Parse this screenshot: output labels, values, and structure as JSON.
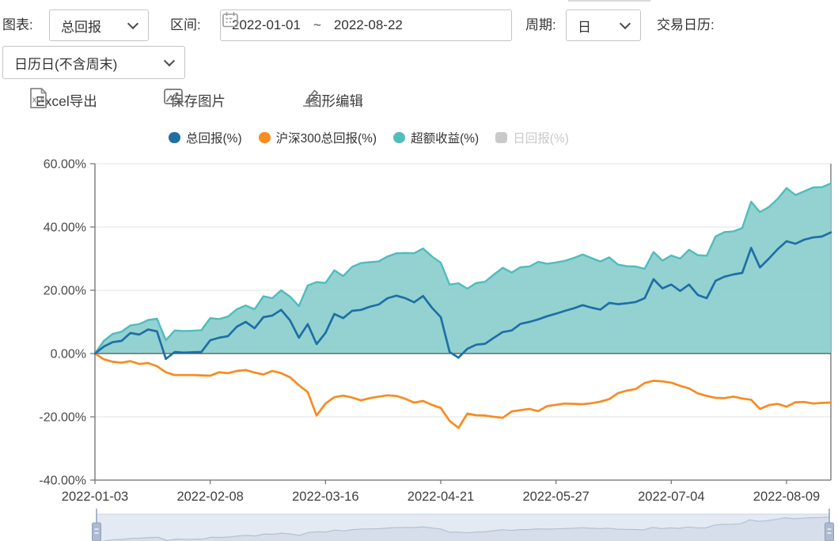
{
  "toolbar": {
    "chart_label": "图表:",
    "chart_select": "总回报",
    "range_label": "区间:",
    "range_start": "2022-01-01",
    "range_separator": "~",
    "range_end": "2022-08-22",
    "period_label": "周期:",
    "period_select": "日",
    "calendar_label": "交易日历:",
    "calendar_select": "日历日(不含周末)"
  },
  "actions": {
    "export_excel": "Excel导出",
    "save_image": "保存图片",
    "edit_graph": "图形编辑"
  },
  "legend": [
    {
      "label": "总回报(%)",
      "color": "#1e6fa5",
      "active": true,
      "shape": "circle"
    },
    {
      "label": "沪深300总回报(%)",
      "color": "#f78c1f",
      "active": true,
      "shape": "circle"
    },
    {
      "label": "超额收益(%)",
      "color": "#53bdbd",
      "active": true,
      "shape": "circle"
    },
    {
      "label": "日回报(%)",
      "color": "#c9c9c9",
      "active": false,
      "shape": "square"
    }
  ],
  "chart_data": {
    "type": "line",
    "title": "",
    "xlabel": "",
    "ylabel": "",
    "ylim": [
      -40,
      60
    ],
    "grid": true,
    "legend_position": "top",
    "x_dates": [
      "2022-01-03",
      "2022-01-05",
      "2022-01-07",
      "2022-01-11",
      "2022-01-13",
      "2022-01-17",
      "2022-01-19",
      "2022-01-21",
      "2022-01-25",
      "2022-01-27",
      "2022-01-31",
      "2022-02-02",
      "2022-02-04",
      "2022-02-08",
      "2022-02-10",
      "2022-02-14",
      "2022-02-16",
      "2022-02-18",
      "2022-02-22",
      "2022-02-24",
      "2022-02-28",
      "2022-03-02",
      "2022-03-04",
      "2022-03-08",
      "2022-03-10",
      "2022-03-15",
      "2022-03-16",
      "2022-03-18",
      "2022-03-22",
      "2022-03-24",
      "2022-03-28",
      "2022-03-30",
      "2022-04-01",
      "2022-04-05",
      "2022-04-07",
      "2022-04-11",
      "2022-04-13",
      "2022-04-15",
      "2022-04-19",
      "2022-04-21",
      "2022-04-25",
      "2022-04-27",
      "2022-04-29",
      "2022-05-03",
      "2022-05-05",
      "2022-05-09",
      "2022-05-11",
      "2022-05-13",
      "2022-05-17",
      "2022-05-19",
      "2022-05-23",
      "2022-05-25",
      "2022-05-27",
      "2022-05-31",
      "2022-06-02",
      "2022-06-06",
      "2022-06-08",
      "2022-06-10",
      "2022-06-14",
      "2022-06-16",
      "2022-06-20",
      "2022-06-22",
      "2022-06-24",
      "2022-06-28",
      "2022-06-30",
      "2022-07-04",
      "2022-07-06",
      "2022-07-08",
      "2022-07-12",
      "2022-07-14",
      "2022-07-18",
      "2022-07-20",
      "2022-07-22",
      "2022-07-26",
      "2022-07-28",
      "2022-08-01",
      "2022-08-03",
      "2022-08-05",
      "2022-08-09",
      "2022-08-11",
      "2022-08-15",
      "2022-08-17",
      "2022-08-19",
      "2022-08-22"
    ],
    "series": [
      {
        "name": "总回报(%)",
        "type": "line",
        "color": "#1e6fa5",
        "values": [
          0,
          2.2,
          3.6,
          4,
          6.5,
          6,
          7.6,
          7,
          -1.7,
          0.5,
          0.3,
          0.4,
          0.5,
          4.2,
          5,
          5.5,
          8.5,
          10,
          8,
          11.5,
          12,
          13.8,
          10.5,
          5,
          9.3,
          3,
          6.5,
          12.5,
          11.2,
          13.5,
          13.8,
          14.8,
          15.5,
          17.5,
          18.3,
          17.5,
          16.2,
          18.2,
          14.5,
          11.5,
          0.5,
          -1.3,
          1.5,
          2.8,
          3.1,
          5,
          6.8,
          7.3,
          9.4,
          10,
          10.8,
          11.8,
          12.6,
          13.5,
          14.3,
          15.3,
          14.5,
          13.9,
          16,
          15.6,
          15.9,
          16.3,
          17.5,
          23.5,
          20.6,
          21.8,
          19.8,
          21.8,
          18.5,
          17.5,
          23,
          24.3,
          25,
          25.5,
          33.4,
          27.2,
          30,
          33,
          35.5,
          34.7,
          36,
          36.7,
          37,
          38.3
        ]
      },
      {
        "name": "沪深300总回报(%)",
        "type": "line",
        "color": "#f78c1f",
        "values": [
          0,
          -1.8,
          -2.6,
          -2.9,
          -2.4,
          -3.3,
          -3,
          -4,
          -5.9,
          -6.8,
          -6.8,
          -6.8,
          -6.9,
          -7,
          -5.9,
          -6.2,
          -5.5,
          -5.2,
          -6,
          -6.6,
          -5.5,
          -6.2,
          -7.5,
          -10,
          -12.2,
          -19.6,
          -15.8,
          -13.8,
          -13.3,
          -13.9,
          -14.8,
          -14.1,
          -13.6,
          -13.2,
          -13.4,
          -14.3,
          -15.5,
          -15,
          -16.2,
          -17.2,
          -21.3,
          -23.5,
          -19,
          -19.5,
          -19.6,
          -20,
          -20.3,
          -18.3,
          -17.9,
          -17.5,
          -18.2,
          -16.6,
          -16.2,
          -15.8,
          -15.9,
          -16,
          -15.7,
          -15.2,
          -14.4,
          -12.5,
          -11.7,
          -11.2,
          -9.3,
          -8.6,
          -8.8,
          -9.2,
          -10.2,
          -11,
          -12.6,
          -13.4,
          -14,
          -14.1,
          -13.6,
          -14.2,
          -14.6,
          -17.5,
          -16.3,
          -15.9,
          -16.8,
          -15.4,
          -15.3,
          -15.8,
          -15.6,
          -15.5
        ]
      },
      {
        "name": "超额收益(%)",
        "type": "area",
        "color": "#4ebdbd",
        "fill": "#8ccfce",
        "values": [
          0,
          4,
          6.2,
          6.9,
          8.9,
          9.3,
          10.6,
          11,
          4.2,
          7.3,
          7.1,
          7.2,
          7.4,
          11.2,
          10.9,
          11.7,
          14,
          15.2,
          14,
          18.1,
          17.5,
          20,
          18,
          15,
          21.5,
          22.6,
          22.3,
          26.3,
          24.5,
          27.4,
          28.6,
          28.9,
          29.1,
          30.7,
          31.7,
          31.8,
          31.7,
          33.2,
          30.7,
          28.7,
          21.8,
          22.2,
          20.5,
          22.3,
          22.7,
          25,
          27.1,
          25.6,
          27.3,
          27.5,
          29,
          28.4,
          28.8,
          29.3,
          30.2,
          31.3,
          30.2,
          29.1,
          30.4,
          28.1,
          27.6,
          27.5,
          26.8,
          32.1,
          29.4,
          31,
          30,
          32.8,
          31.1,
          30.9,
          37,
          38.4,
          38.6,
          39.7,
          48,
          44.7,
          46.3,
          48.9,
          52.3,
          50.1,
          51.3,
          52.5,
          52.6,
          53.8
        ]
      },
      {
        "name": "日回报(%)",
        "type": "bar",
        "color": "#c9c9c9",
        "hidden": true,
        "values": []
      }
    ],
    "yticks": [
      {
        "v": 60,
        "label": "60.00%"
      },
      {
        "v": 40,
        "label": "40.00%"
      },
      {
        "v": 20,
        "label": "20.00%"
      },
      {
        "v": 0,
        "label": "0.00%"
      },
      {
        "v": -20,
        "label": "-20.00%"
      },
      {
        "v": -40,
        "label": "-40.00%"
      }
    ],
    "xticks": [
      {
        "i": 0,
        "label": "2022-01-03"
      },
      {
        "i": 13,
        "label": "2022-02-08"
      },
      {
        "i": 26,
        "label": "2022-03-16"
      },
      {
        "i": 39,
        "label": "2022-04-21"
      },
      {
        "i": 52,
        "label": "2022-05-27"
      },
      {
        "i": 65,
        "label": "2022-07-04"
      },
      {
        "i": 78,
        "label": "2022-08-09"
      }
    ],
    "style": {
      "grid_line": "#e3e3e3",
      "zero_line": "#555555",
      "axis_line": "#6e6e6e",
      "axis_label": "#4a4a4a",
      "tick_label": "#3f3f3f",
      "nav_track": "#e4eaf3",
      "nav_border": "#ccd4e1",
      "nav_handle": "#aebacd",
      "nav_handle_border": "#8fa0ba",
      "nav_series_line": "#b3c0d1",
      "nav_series_fill": "#d3dbe8"
    }
  }
}
